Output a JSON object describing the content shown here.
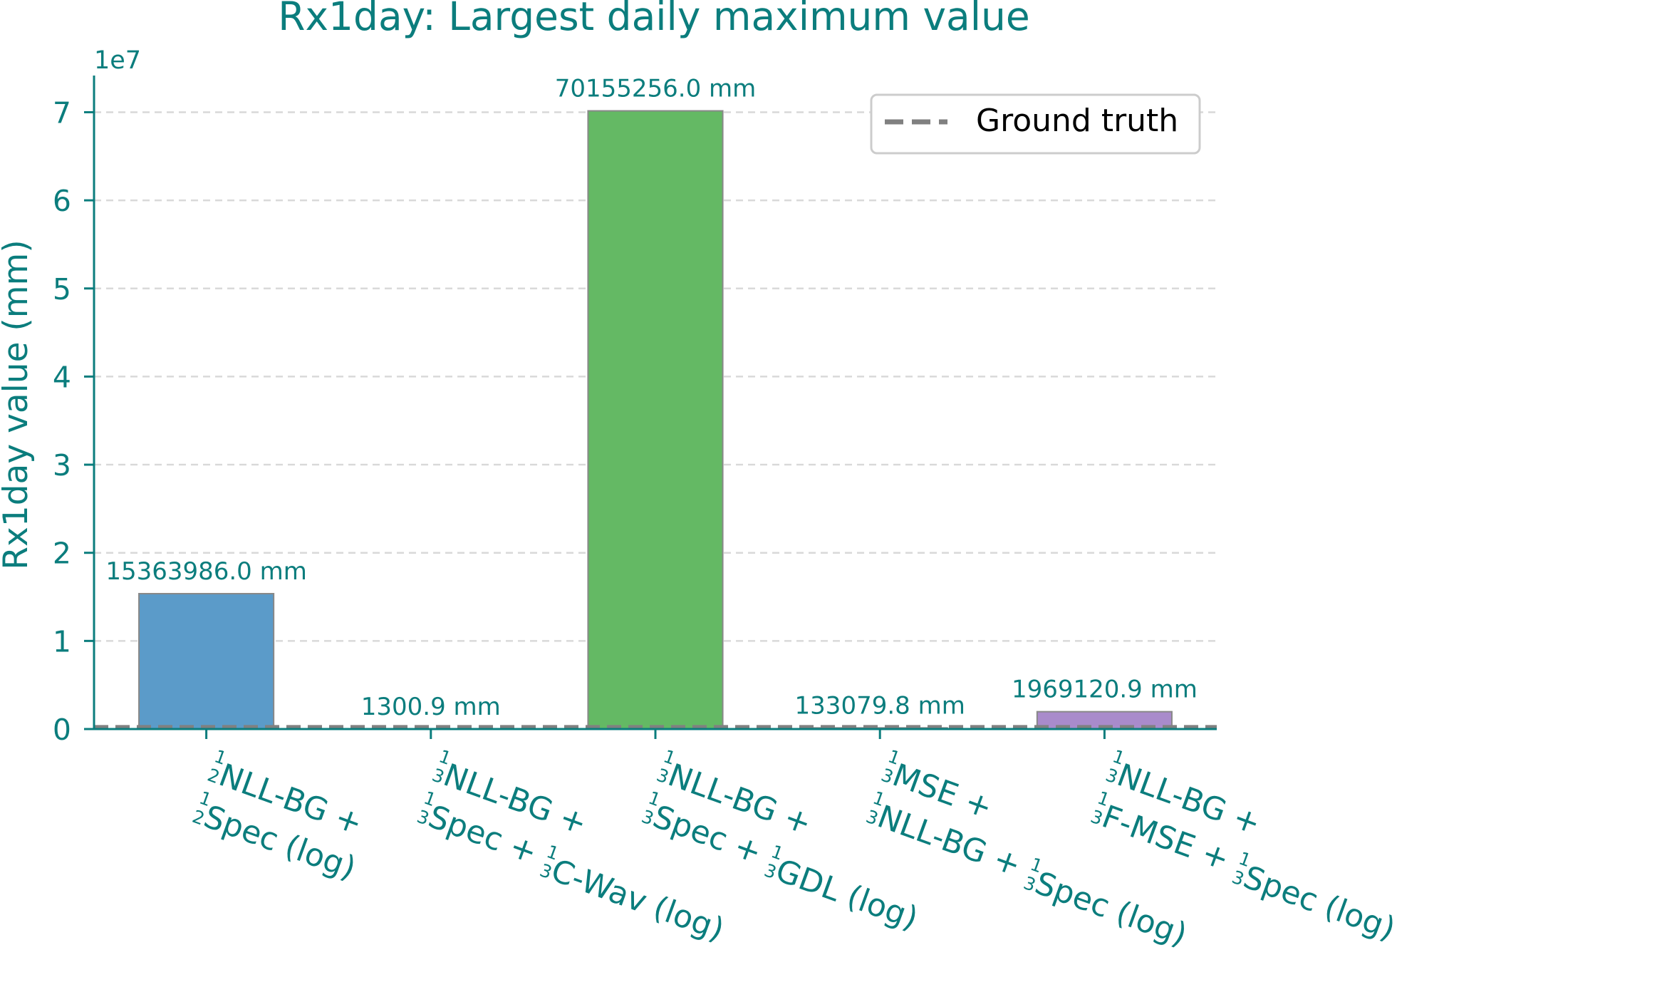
{
  "chart_data": {
    "type": "bar",
    "title": "Rx1day: Largest daily maximum value",
    "ylabel": "Rx1day value (mm)",
    "xlabel": "",
    "y_scale_label": "1e7",
    "ylim": [
      0,
      74000000
    ],
    "yticks": [
      0,
      10000000,
      20000000,
      30000000,
      40000000,
      50000000,
      60000000,
      70000000
    ],
    "ytick_labels": [
      "0",
      "1",
      "2",
      "3",
      "4",
      "5",
      "6",
      "7"
    ],
    "grid": "horizontal-dashed",
    "legend_position": "top-right",
    "legend": [
      {
        "label": "Ground truth",
        "style": "dashed-line",
        "color": "#808080"
      }
    ],
    "ground_truth": 250000,
    "categories": [
      {
        "lead": [
          [
            "frac",
            "1",
            "2"
          ],
          [
            "t",
            "NLL-BG + "
          ]
        ],
        "rest": [
          [
            "frac",
            "1",
            "2"
          ],
          [
            "t",
            "Spec (log)"
          ]
        ]
      },
      {
        "lead": [
          [
            "frac",
            "1",
            "3"
          ],
          [
            "t",
            "NLL-BG + "
          ]
        ],
        "rest": [
          [
            "frac",
            "1",
            "3"
          ],
          [
            "t",
            "Spec + "
          ],
          [
            "frac",
            "1",
            "3"
          ],
          [
            "t",
            "C-Wav (log)"
          ]
        ]
      },
      {
        "lead": [
          [
            "frac",
            "1",
            "3"
          ],
          [
            "t",
            "NLL-BG + "
          ]
        ],
        "rest": [
          [
            "frac",
            "1",
            "3"
          ],
          [
            "t",
            "Spec + "
          ],
          [
            "frac",
            "1",
            "3"
          ],
          [
            "t",
            "GDL (log)"
          ]
        ]
      },
      {
        "lead": [
          [
            "frac",
            "1",
            "3"
          ],
          [
            "t",
            "MSE + "
          ]
        ],
        "rest": [
          [
            "frac",
            "1",
            "3"
          ],
          [
            "t",
            "NLL-BG + "
          ],
          [
            "frac",
            "1",
            "3"
          ],
          [
            "t",
            "Spec (log)"
          ]
        ]
      },
      {
        "lead": [
          [
            "frac",
            "1",
            "3"
          ],
          [
            "t",
            "NLL-BG + "
          ]
        ],
        "rest": [
          [
            "frac",
            "1",
            "3"
          ],
          [
            "t",
            "F-MSE + "
          ],
          [
            "frac",
            "1",
            "3"
          ],
          [
            "t",
            "Spec (log)"
          ]
        ]
      }
    ],
    "values": [
      15363986.0,
      1300.9,
      70155256.0,
      133079.8,
      1969120.9
    ],
    "value_labels": [
      "15363986.0 mm",
      "1300.9 mm",
      "70155256.0 mm",
      "133079.8 mm",
      "1969120.9 mm"
    ],
    "colors": [
      "#5b9bc9",
      "#f5a04a",
      "#64b964",
      "#d9534f",
      "#a98bcb"
    ],
    "edge_color": "#888888",
    "text_color": "#0b7d7d"
  }
}
